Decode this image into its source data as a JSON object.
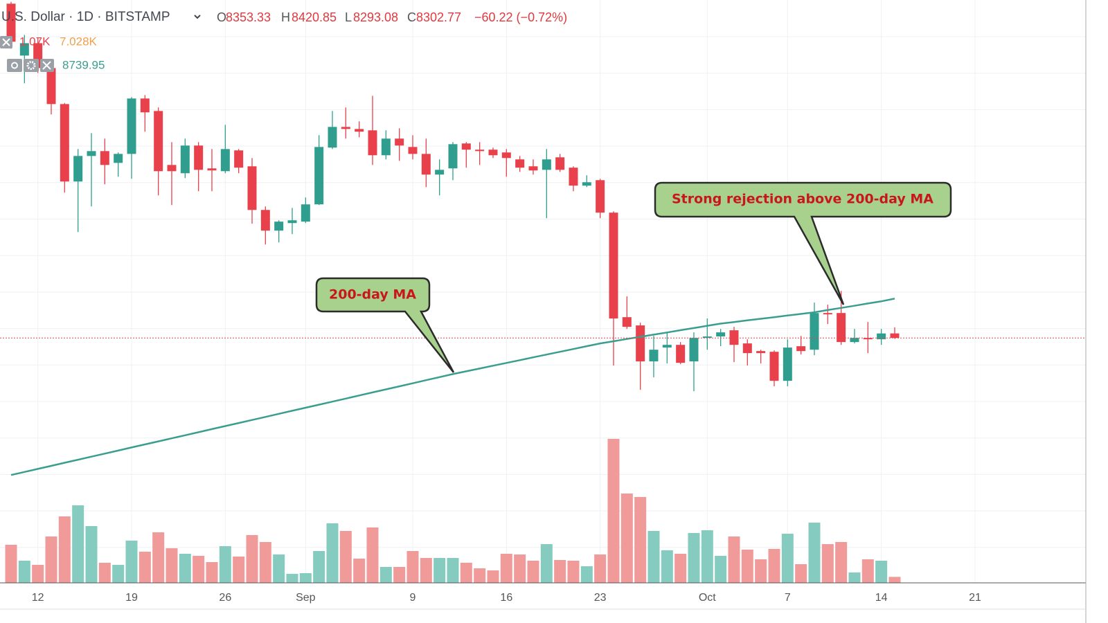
{
  "chart_data": {
    "type": "candlestick",
    "header": {
      "symbol": "U.S. Dollar · 1D · BITSTAMP",
      "ohlc_labels": [
        "O",
        "H",
        "L",
        "C"
      ],
      "change": "−60.22 (−0.72%)"
    },
    "volume_legend": {
      "last": "1.07K",
      "average": "7.028K"
    },
    "annotations": [
      "200-day MA",
      "Strong rejection above 200-day MA"
    ],
    "categories": [
      null,
      null,
      "12",
      null,
      null,
      null,
      null,
      null,
      null,
      "19",
      null,
      null,
      null,
      null,
      null,
      null,
      "26",
      null,
      null,
      null,
      null,
      null,
      "Sep",
      null,
      null,
      null,
      null,
      null,
      null,
      null,
      "9",
      null,
      null,
      null,
      null,
      null,
      null,
      "16",
      null,
      null,
      null,
      null,
      null,
      null,
      "23",
      null,
      null,
      null,
      null,
      null,
      null,
      null,
      "Oct",
      null,
      null,
      null,
      null,
      null,
      "7",
      null,
      null,
      null,
      null,
      null,
      null,
      "14",
      null,
      null,
      null,
      null,
      null,
      null,
      "21"
    ],
    "open": [
      12019,
      11442,
      11580,
      11303,
      10903,
      10042,
      10326,
      10380,
      10249,
      10349,
      10965,
      10826,
      10226,
      10134,
      10442,
      10188,
      10157,
      10388,
      10211,
      9726,
      9496,
      9580,
      9596,
      9788,
      10419,
      10649,
      10626,
      10611,
      10334,
      10519,
      10426,
      10349,
      10119,
      10188,
      10465,
      10396,
      10396,
      10365,
      10288,
      10211,
      10172,
      10311,
      10196,
      9996,
      10057,
      9696,
      8534,
      8442,
      8042,
      8196,
      8226,
      8042,
      8303,
      8319,
      8388,
      8242,
      8157,
      8149,
      7826,
      8211,
      8172,
      8580,
      8580,
      8257,
      8303,
      8288,
      8353.33,
      null,
      null,
      null,
      null,
      null,
      null
    ],
    "high": [
      12040,
      11672,
      11634,
      11326,
      10915,
      10403,
      10580,
      10519,
      10365,
      10980,
      11003,
      10865,
      10480,
      10519,
      10480,
      10403,
      10672,
      10403,
      10303,
      9765,
      9611,
      9749,
      9865,
      10557,
      10826,
      10865,
      10711,
      10995,
      10611,
      10634,
      10557,
      10519,
      10288,
      10480,
      10480,
      10480,
      10419,
      10403,
      10326,
      10288,
      10403,
      10349,
      10211,
      10111,
      10072,
      9711,
      8765,
      8472,
      8326,
      8365,
      8257,
      8365,
      8519,
      8403,
      8426,
      8288,
      8172,
      8165,
      8288,
      8326,
      8696,
      8673,
      8826,
      8403,
      8480,
      8403,
      8420.85,
      null,
      null,
      null,
      null,
      null,
      null
    ],
    "low": [
      11519,
      11134,
      11249,
      10788,
      9919,
      9480,
      9765,
      10011,
      10095,
      10072,
      10596,
      9888,
      9780,
      10080,
      9934,
      9934,
      10134,
      10134,
      9573,
      9342,
      9365,
      9457,
      9580,
      9780,
      10403,
      10519,
      10534,
      10226,
      10288,
      10272,
      10288,
      9980,
      9888,
      10057,
      10196,
      10226,
      10303,
      10095,
      10149,
      10119,
      9634,
      10149,
      9934,
      9980,
      9634,
      7996,
      8403,
      7726,
      7865,
      8019,
      8011,
      7711,
      8172,
      8211,
      8034,
      7996,
      8019,
      7765,
      7765,
      8119,
      8111,
      8457,
      8226,
      8242,
      8134,
      8226,
      8293.08,
      null,
      null,
      null,
      null,
      null,
      null
    ],
    "close": [
      11596,
      11580,
      11303,
      10903,
      10042,
      10326,
      10380,
      10226,
      10349,
      10965,
      10811,
      10157,
      10157,
      10442,
      10172,
      10165,
      10403,
      10196,
      9726,
      9496,
      9596,
      9611,
      9788,
      10426,
      10649,
      10626,
      10596,
      10334,
      10519,
      10442,
      10349,
      10119,
      10172,
      10457,
      10396,
      10380,
      10334,
      10303,
      10196,
      10165,
      10288,
      10172,
      9996,
      10034,
      9696,
      8519,
      8426,
      8042,
      8172,
      8226,
      8026,
      8303,
      8319,
      8365,
      8226,
      8134,
      8134,
      7826,
      8196,
      8157,
      8580,
      8565,
      8257,
      8303,
      8288,
      8353,
      8302.77,
      null,
      null,
      null,
      null,
      null,
      null
    ],
    "volume": [
      6820,
      3970,
      3220,
      8310,
      11900,
      13890,
      10170,
      3600,
      3220,
      7560,
      5580,
      9050,
      6200,
      5210,
      4840,
      3720,
      6570,
      4710,
      8560,
      7320,
      5080,
      1610,
      1740,
      5700,
      10660,
      9300,
      4340,
      9920,
      2850,
      2850,
      5700,
      4460,
      4460,
      4460,
      3600,
      2600,
      2230,
      5210,
      5080,
      3970,
      6940,
      4090,
      3970,
      2980,
      5080,
      25790,
      16000,
      15380,
      9300,
      5830,
      5210,
      8930,
      9420,
      4840,
      8310,
      5950,
      4220,
      6080,
      8800,
      3350,
      10790,
      6940,
      7320,
      1860,
      4220,
      3970,
      1070,
      null,
      null,
      null,
      null,
      null,
      null
    ],
    "ma": [
      6779,
      6813,
      6847,
      6881,
      6915,
      6949,
      6983,
      7017,
      7051,
      7085,
      7119,
      7153,
      7187,
      7221,
      7255,
      7289,
      7323,
      7357,
      7391,
      7425,
      7459,
      7493,
      7527,
      7561,
      7595,
      7629,
      7663,
      7697,
      7731,
      7765,
      7799,
      7833,
      7867,
      7901,
      7932,
      7963,
      7994,
      8025,
      8056,
      8087,
      8118,
      8149,
      8180,
      8211,
      8242,
      8266,
      8291,
      8315,
      8340,
      8364,
      8389,
      8413,
      8438,
      8462,
      8480,
      8498,
      8516,
      8534,
      8552,
      8570,
      8588,
      8613,
      8637,
      8661,
      8686,
      8710,
      8739.95,
      null,
      null,
      null,
      null,
      null,
      null
    ],
    "ylim": [
      5580,
      12060
    ],
    "volume_ylim": [
      0,
      30000
    ],
    "up_color": "#2f9e8f",
    "down_color": "#e8414b",
    "volume_up_color": "#86cbc0",
    "volume_down_color": "#f09a9a",
    "ma_color": "#3a9e8f",
    "volume_label_color": "#f0a04b"
  }
}
